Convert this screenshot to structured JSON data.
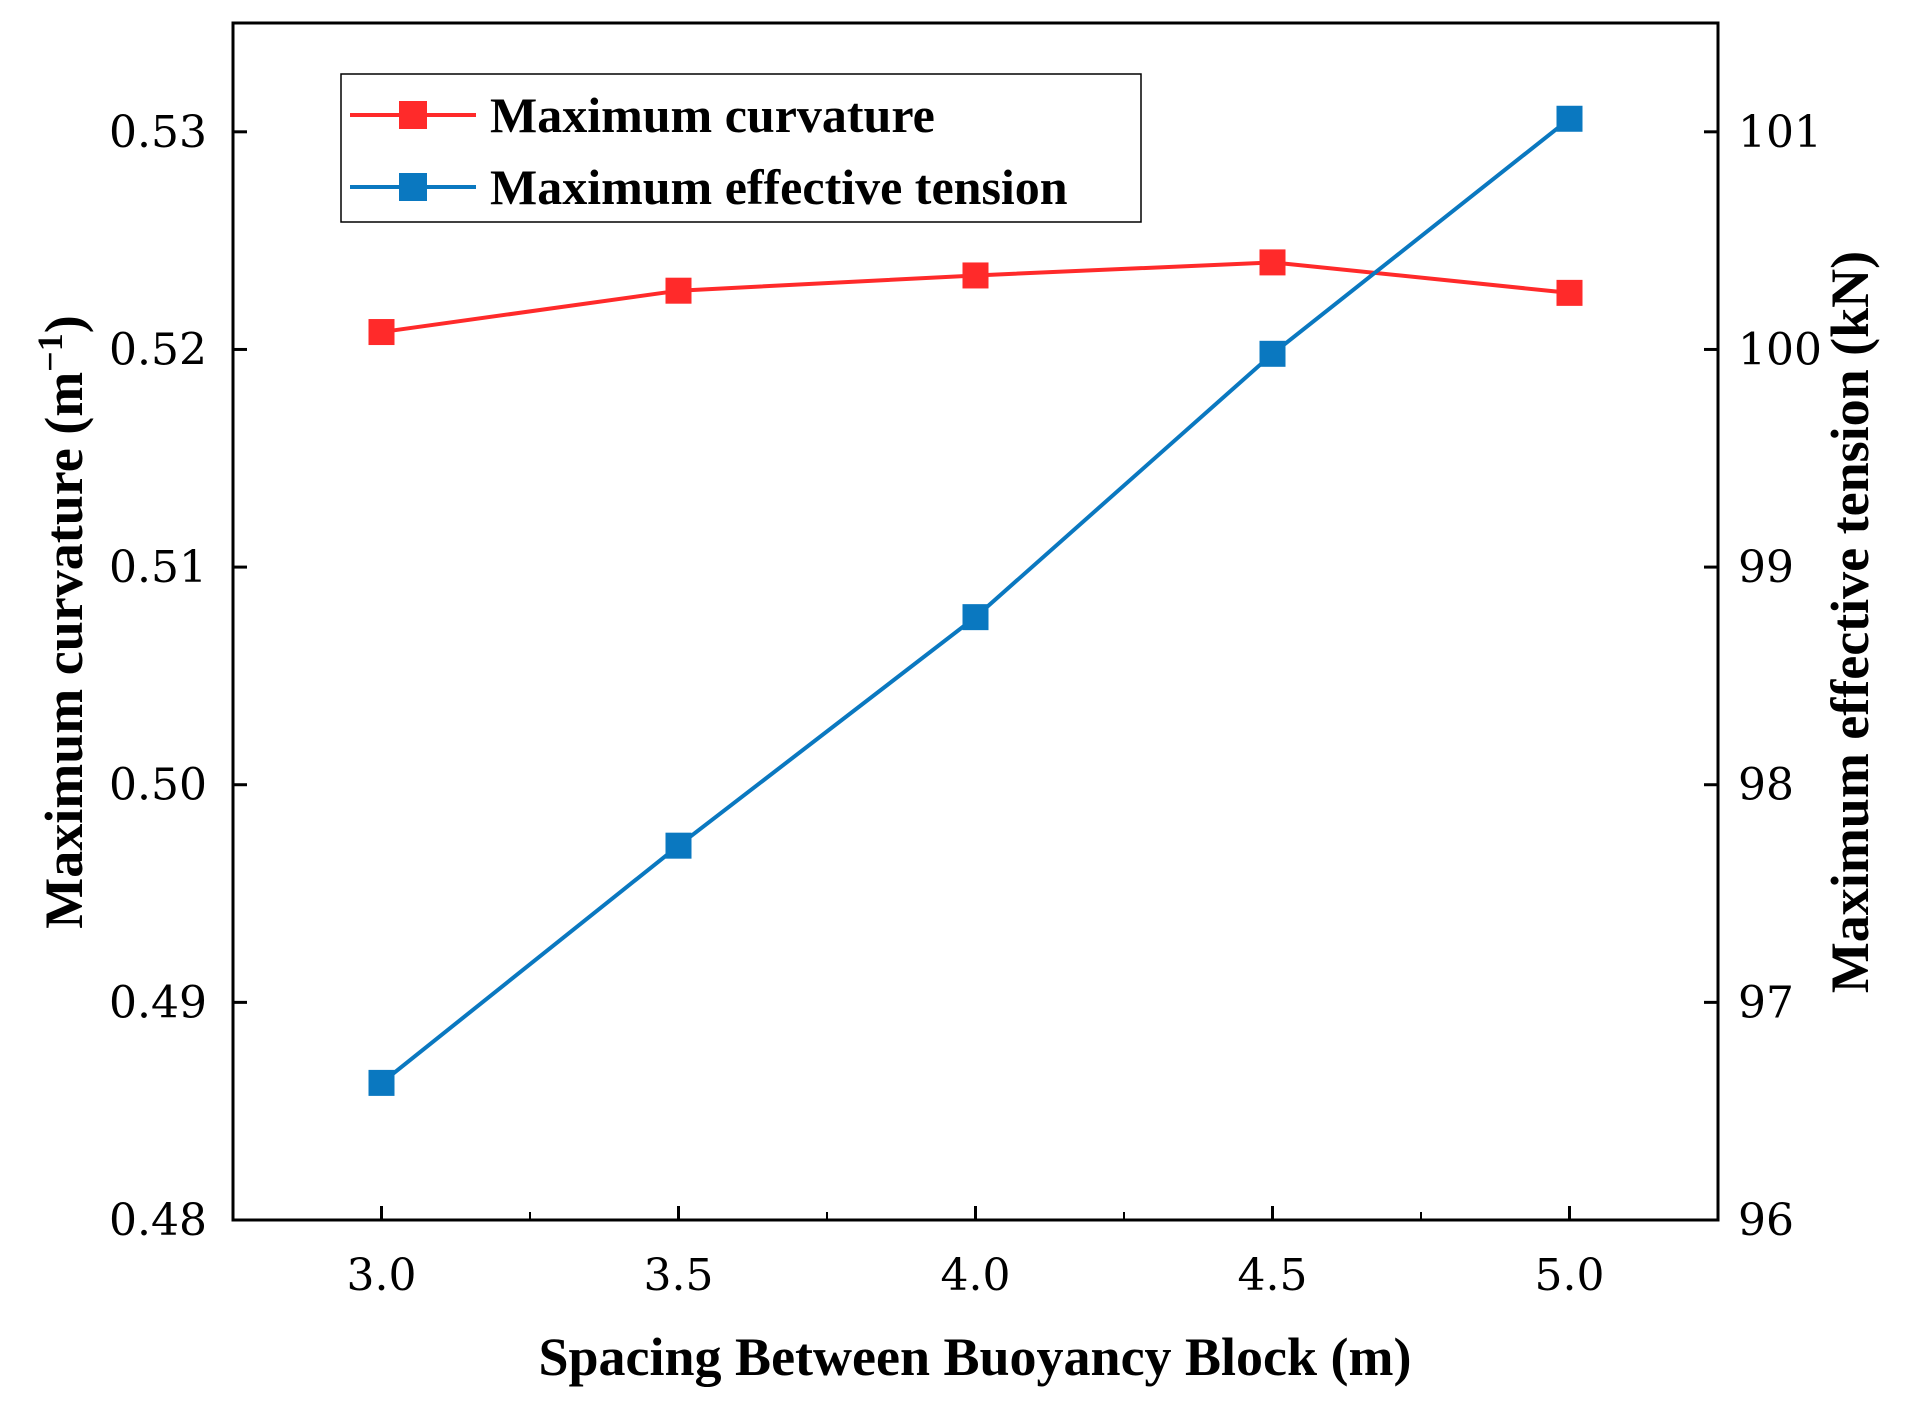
{
  "chart_data": {
    "type": "line",
    "x": [
      3.0,
      3.5,
      4.0,
      4.5,
      5.0
    ],
    "x_tick_labels": [
      "3.0",
      "3.5",
      "4.0",
      "4.5",
      "5.0"
    ],
    "xlim": [
      2.75,
      5.25
    ],
    "xlabel": "Spacing Between Buoyancy Block (m)",
    "ylabel_left_main": "Maximum curvature (m",
    "ylabel_left_sup": "−1",
    "ylabel_left_close": ")",
    "ylabel_right": "Maximum effective tension (kN)",
    "ylim_left": [
      0.48,
      0.535
    ],
    "ylim_right": [
      96,
      101.5
    ],
    "left_ticks": [
      0.48,
      0.49,
      0.5,
      0.51,
      0.52,
      0.53
    ],
    "left_tick_labels": [
      "0.48",
      "0.49",
      "0.50",
      "0.51",
      "0.52",
      "0.53"
    ],
    "right_ticks": [
      96,
      97,
      98,
      99,
      100,
      101
    ],
    "right_tick_labels": [
      "96",
      "97",
      "98",
      "99",
      "100",
      "101"
    ],
    "grid": false,
    "legend_position": "top-left",
    "series": [
      {
        "name": "Maximum curvature",
        "axis": "left",
        "color": "#ff2a2a",
        "values": [
          0.5208,
          0.5227,
          0.5234,
          0.524,
          0.5226
        ]
      },
      {
        "name": "Maximum effective tension",
        "axis": "right",
        "color": "#0a78c0",
        "values": [
          96.63,
          97.72,
          98.77,
          99.98,
          101.06
        ]
      }
    ]
  }
}
